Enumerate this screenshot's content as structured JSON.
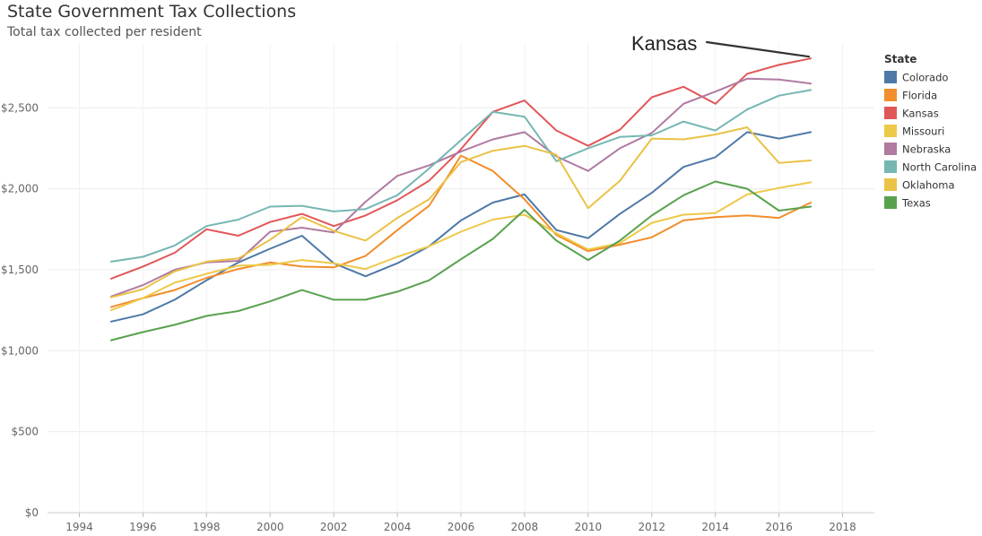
{
  "header": {
    "title": "State Government Tax Collections",
    "subtitle": "Total tax collected per resident"
  },
  "legend": {
    "title": "State"
  },
  "annotation": {
    "text": "Kansas",
    "target_series": "Kansas",
    "target_x": 2017
  },
  "chart_data": {
    "type": "line",
    "title": "State Government Tax Collections",
    "subtitle": "Total tax collected per resident",
    "xlabel": "",
    "ylabel": "",
    "xlim": [
      1993,
      2019
    ],
    "ylim": [
      0,
      2900
    ],
    "x_ticks": [
      1994,
      1996,
      1998,
      2000,
      2002,
      2004,
      2006,
      2008,
      2010,
      2012,
      2014,
      2016,
      2018
    ],
    "y_ticks": [
      0,
      500,
      1000,
      1500,
      2000,
      2500
    ],
    "y_tick_labels": [
      "$0",
      "$500",
      "$1,000",
      "$1,500",
      "$2,000",
      "$2,500"
    ],
    "grid": true,
    "legend_position": "right",
    "x": [
      1995,
      1996,
      1997,
      1998,
      1999,
      2000,
      2001,
      2002,
      2003,
      2004,
      2005,
      2006,
      2007,
      2008,
      2009,
      2010,
      2011,
      2012,
      2013,
      2014,
      2015,
      2016,
      2017
    ],
    "series": [
      {
        "name": "Colorado",
        "color": "#4e79a7",
        "values": [
          1180,
          1225,
          1315,
          1435,
          1545,
          1630,
          1710,
          1540,
          1460,
          1540,
          1645,
          1805,
          1915,
          1965,
          1745,
          1695,
          1845,
          1975,
          2135,
          2195,
          2350,
          2310,
          2350
        ]
      },
      {
        "name": "Florida",
        "color": "#f28e2b",
        "values": [
          1270,
          1325,
          1375,
          1450,
          1505,
          1545,
          1520,
          1515,
          1585,
          1745,
          1895,
          2205,
          2110,
          1935,
          1715,
          1615,
          1655,
          1700,
          1805,
          1825,
          1835,
          1820,
          1915
        ]
      },
      {
        "name": "Kansas",
        "color": "#e15759",
        "values": [
          1445,
          1520,
          1605,
          1750,
          1710,
          1795,
          1845,
          1770,
          1835,
          1930,
          2050,
          2245,
          2475,
          2545,
          2360,
          2265,
          2365,
          2565,
          2630,
          2525,
          2710,
          2765,
          2805
        ]
      },
      {
        "name": "Missouri",
        "color": "#edc948",
        "values": [
          1250,
          1325,
          1420,
          1475,
          1525,
          1530,
          1560,
          1540,
          1505,
          1580,
          1645,
          1735,
          1810,
          1840,
          1725,
          1625,
          1665,
          1790,
          1840,
          1850,
          1965,
          2005,
          2040
        ]
      },
      {
        "name": "Nebraska",
        "color": "#b07aa1",
        "values": [
          1335,
          1405,
          1500,
          1545,
          1555,
          1735,
          1760,
          1730,
          1920,
          2080,
          2145,
          2230,
          2305,
          2350,
          2200,
          2110,
          2250,
          2345,
          2525,
          2600,
          2680,
          2675,
          2650
        ]
      },
      {
        "name": "North Carolina",
        "color": "#76b7b2",
        "values": [
          1550,
          1580,
          1650,
          1770,
          1810,
          1890,
          1895,
          1860,
          1875,
          1960,
          2125,
          2300,
          2475,
          2445,
          2170,
          2250,
          2320,
          2330,
          2415,
          2360,
          2490,
          2575,
          2610
        ]
      },
      {
        "name": "Oklahoma",
        "color": "#eac246",
        "values": [
          1330,
          1380,
          1490,
          1550,
          1570,
          1685,
          1825,
          1740,
          1680,
          1820,
          1935,
          2165,
          2235,
          2265,
          2210,
          1880,
          2050,
          2310,
          2305,
          2335,
          2380,
          2160,
          2175
        ]
      },
      {
        "name": "Texas",
        "color": "#59a14f",
        "values": [
          1065,
          1115,
          1160,
          1215,
          1245,
          1305,
          1375,
          1315,
          1315,
          1365,
          1435,
          1565,
          1690,
          1870,
          1680,
          1560,
          1680,
          1835,
          1960,
          2045,
          2000,
          1865,
          1890
        ]
      }
    ]
  }
}
